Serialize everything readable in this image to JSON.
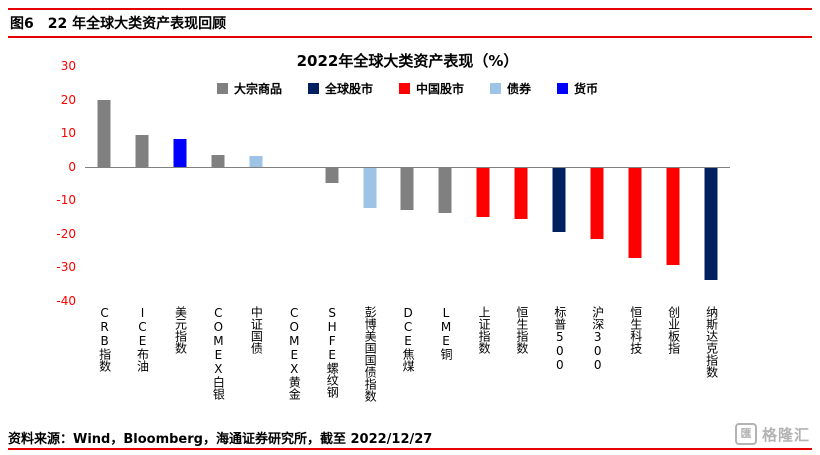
{
  "header": {
    "figure_label": "图6",
    "title": "22 年全球大类资产表现回顾"
  },
  "footer": {
    "source": "资料来源：Wind，Bloomberg，海通证券研究所，截至 2022/12/27"
  },
  "watermark": {
    "logo_char": "匯",
    "text": "格隆汇"
  },
  "colors": {
    "accent_red": "#e60000",
    "axis_label_red": "#ff0000",
    "zero_line_gray": "#808080"
  },
  "legend": [
    {
      "label": "大宗商品",
      "color": "#808080"
    },
    {
      "label": "全球股市",
      "color": "#002060"
    },
    {
      "label": "中国股市",
      "color": "#ff0000"
    },
    {
      "label": "债券",
      "color": "#9dc3e6"
    },
    {
      "label": "货币",
      "color": "#0000ff"
    }
  ],
  "chart_data": {
    "type": "bar",
    "title": "2022年全球大类资产表现（%）",
    "xlabel": "",
    "ylabel": "",
    "ylim": [
      -40,
      30
    ],
    "yticks": [
      30,
      20,
      10,
      0,
      -10,
      -20,
      -30,
      -40
    ],
    "grid": false,
    "legend_position": "top",
    "series_colors": {
      "大宗商品": "#808080",
      "全球股市": "#002060",
      "中国股市": "#ff0000",
      "债券": "#9dc3e6",
      "货币": "#0000ff"
    },
    "bars": [
      {
        "label": "CRB指数",
        "series": "大宗商品",
        "value": 20
      },
      {
        "label": "ICE布油",
        "series": "大宗商品",
        "value": 9.5
      },
      {
        "label": "美元指数",
        "series": "货币",
        "value": 8.2
      },
      {
        "label": "COMEX白银",
        "series": "大宗商品",
        "value": 3.6
      },
      {
        "label": "中证国债",
        "series": "债券",
        "value": 3.2
      },
      {
        "label": "COMEX黄金",
        "series": "大宗商品",
        "value": -0.4
      },
      {
        "label": "SHFE螺纹钢",
        "series": "大宗商品",
        "value": -5
      },
      {
        "label": "彭博美国国债指数",
        "series": "债券",
        "value": -12.3
      },
      {
        "label": "DCE焦煤",
        "series": "大宗商品",
        "value": -13
      },
      {
        "label": "LME铜",
        "series": "大宗商品",
        "value": -13.8
      },
      {
        "label": "上证指数",
        "series": "中国股市",
        "value": -15.1
      },
      {
        "label": "恒生指数",
        "series": "中国股市",
        "value": -15.5
      },
      {
        "label": "标普500",
        "series": "全球股市",
        "value": -19.4
      },
      {
        "label": "沪深300",
        "series": "中国股市",
        "value": -21.6
      },
      {
        "label": "恒生科技",
        "series": "中国股市",
        "value": -27.2
      },
      {
        "label": "创业板指",
        "series": "中国股市",
        "value": -29.4
      },
      {
        "label": "纳斯达克指数",
        "series": "全球股市",
        "value": -33.6
      }
    ]
  }
}
